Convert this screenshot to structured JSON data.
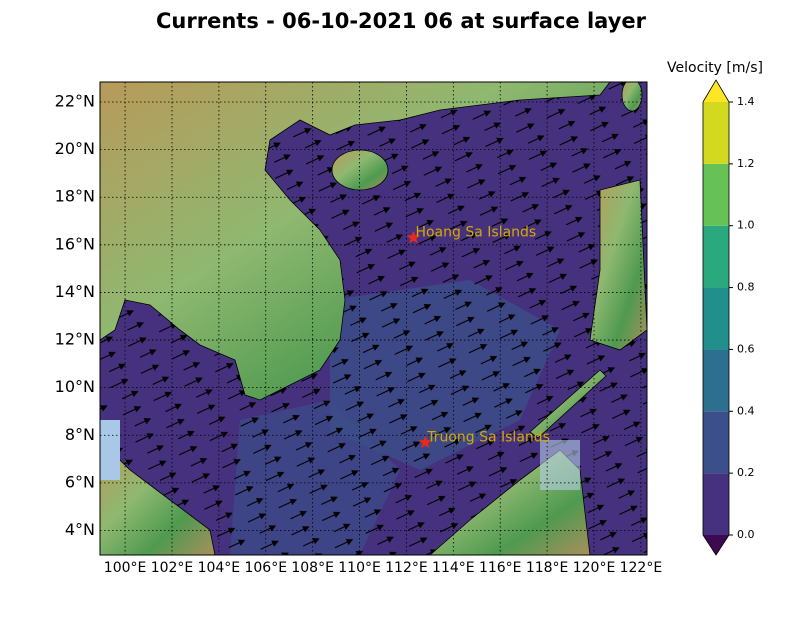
{
  "chart_data": {
    "type": "map",
    "title": "Currents - 06-10-2021 06 at surface layer",
    "xlim": [
      98.93,
      122.26
    ],
    "ylim": [
      2.97,
      22.84
    ],
    "xticks": [
      {
        "value": 100,
        "label": "100°E"
      },
      {
        "value": 102,
        "label": "102°E"
      },
      {
        "value": 104,
        "label": "104°E"
      },
      {
        "value": 106,
        "label": "106°E"
      },
      {
        "value": 108,
        "label": "108°E"
      },
      {
        "value": 110,
        "label": "110°E"
      },
      {
        "value": 112,
        "label": "112°E"
      },
      {
        "value": 114,
        "label": "114°E"
      },
      {
        "value": 116,
        "label": "116°E"
      },
      {
        "value": 118,
        "label": "118°E"
      },
      {
        "value": 120,
        "label": "120°E"
      },
      {
        "value": 122,
        "label": "122°E"
      }
    ],
    "yticks": [
      {
        "value": 4,
        "label": "4°N"
      },
      {
        "value": 6,
        "label": "6°N"
      },
      {
        "value": 8,
        "label": "8°N"
      },
      {
        "value": 10,
        "label": "10°N"
      },
      {
        "value": 12,
        "label": "12°N"
      },
      {
        "value": 14,
        "label": "14°N"
      },
      {
        "value": 16,
        "label": "16°N"
      },
      {
        "value": 18,
        "label": "18°N"
      },
      {
        "value": 20,
        "label": "20°N"
      },
      {
        "value": 22,
        "label": "22°N"
      }
    ],
    "grid": true,
    "points": [
      {
        "name": "Hoang Sa Islands",
        "lon": 112.3,
        "lat": 16.3,
        "color": "#e8291c"
      },
      {
        "name": "Truong Sa Islands",
        "lon": 112.8,
        "lat": 7.7,
        "color": "#e8291c"
      }
    ],
    "point_label_color": "#d4aa00",
    "colorbar": {
      "label": "Velocity [m/s]",
      "lim": [
        0,
        1.4
      ],
      "ticks": [
        {
          "value": 0,
          "label": "0.0"
        },
        0.2,
        0.4,
        0.6,
        0.8,
        {
          "value": 1,
          "label": "1.0"
        },
        1.2,
        1.4
      ],
      "colors": [
        "#46317e",
        "#3b4f8a",
        "#2d6f8e",
        "#21908c",
        "#2aa97f",
        "#66c257",
        "#d2d91f"
      ],
      "under_color": "#3d0a52",
      "over_color": "#fde725"
    }
  }
}
